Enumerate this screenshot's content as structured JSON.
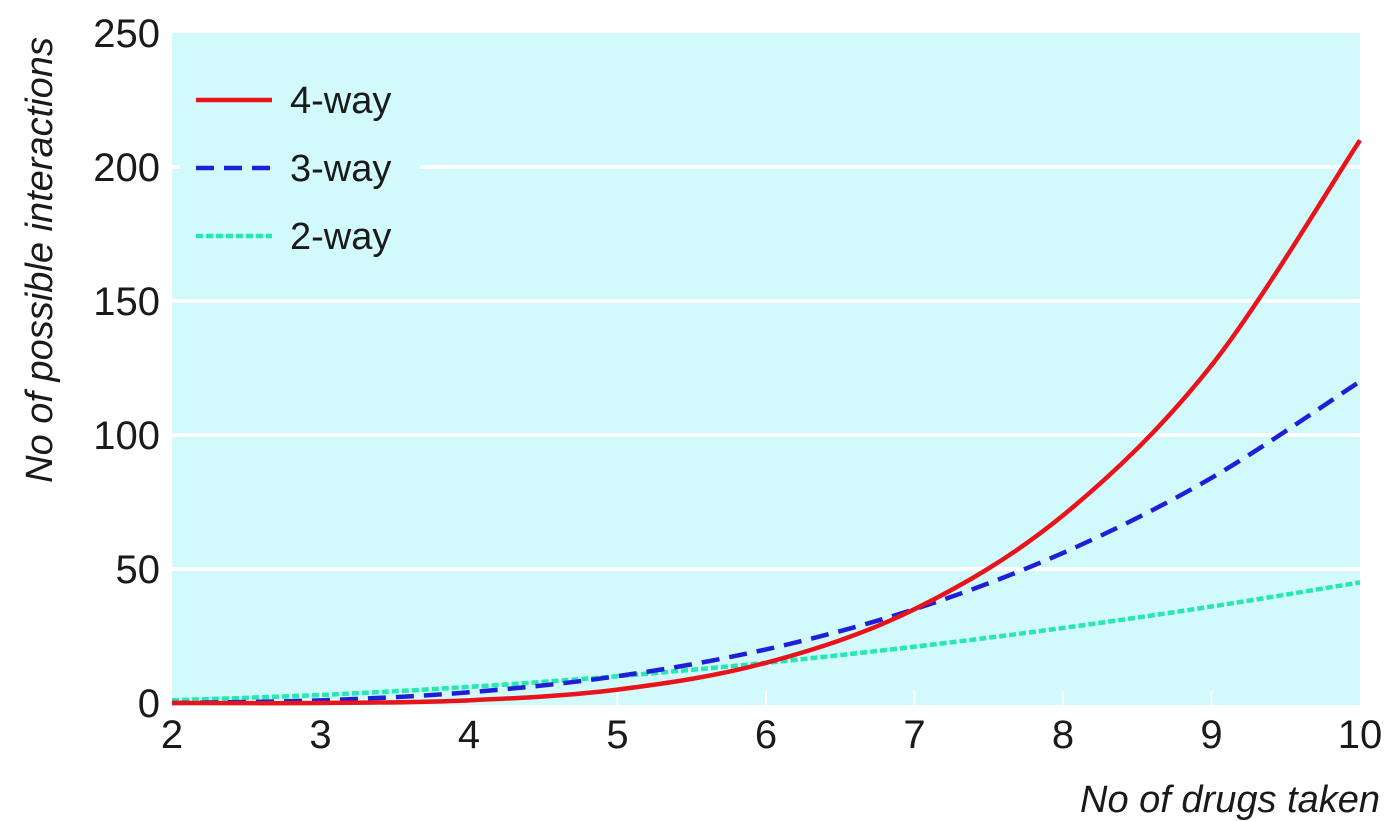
{
  "chart_data": {
    "type": "line",
    "x": [
      2,
      3,
      4,
      5,
      6,
      7,
      8,
      9,
      10
    ],
    "xlabel": "No of drugs taken",
    "ylabel": "No of possible interactions",
    "xlim": [
      2,
      10
    ],
    "ylim": [
      0,
      250
    ],
    "x_ticks": [
      "2",
      "3",
      "4",
      "5",
      "6",
      "7",
      "8",
      "9",
      "10"
    ],
    "y_ticks": [
      "0",
      "50",
      "100",
      "150",
      "200",
      "250"
    ],
    "grid": "horizontal",
    "legend_position": "top-left",
    "background_color": "#d2fafd",
    "series": [
      {
        "name": "4-way",
        "values": [
          0,
          0,
          1,
          5,
          15,
          35,
          70,
          126,
          210
        ],
        "color": "#e8141c",
        "style": "solid"
      },
      {
        "name": "3-way",
        "values": [
          0,
          1,
          4,
          10,
          20,
          35,
          56,
          84,
          120
        ],
        "color": "#1f1fd6",
        "style": "dashed"
      },
      {
        "name": "2-way",
        "values": [
          1,
          3,
          6,
          10,
          15,
          21,
          28,
          36,
          45
        ],
        "color": "#27e8b0",
        "style": "dotted"
      }
    ]
  }
}
